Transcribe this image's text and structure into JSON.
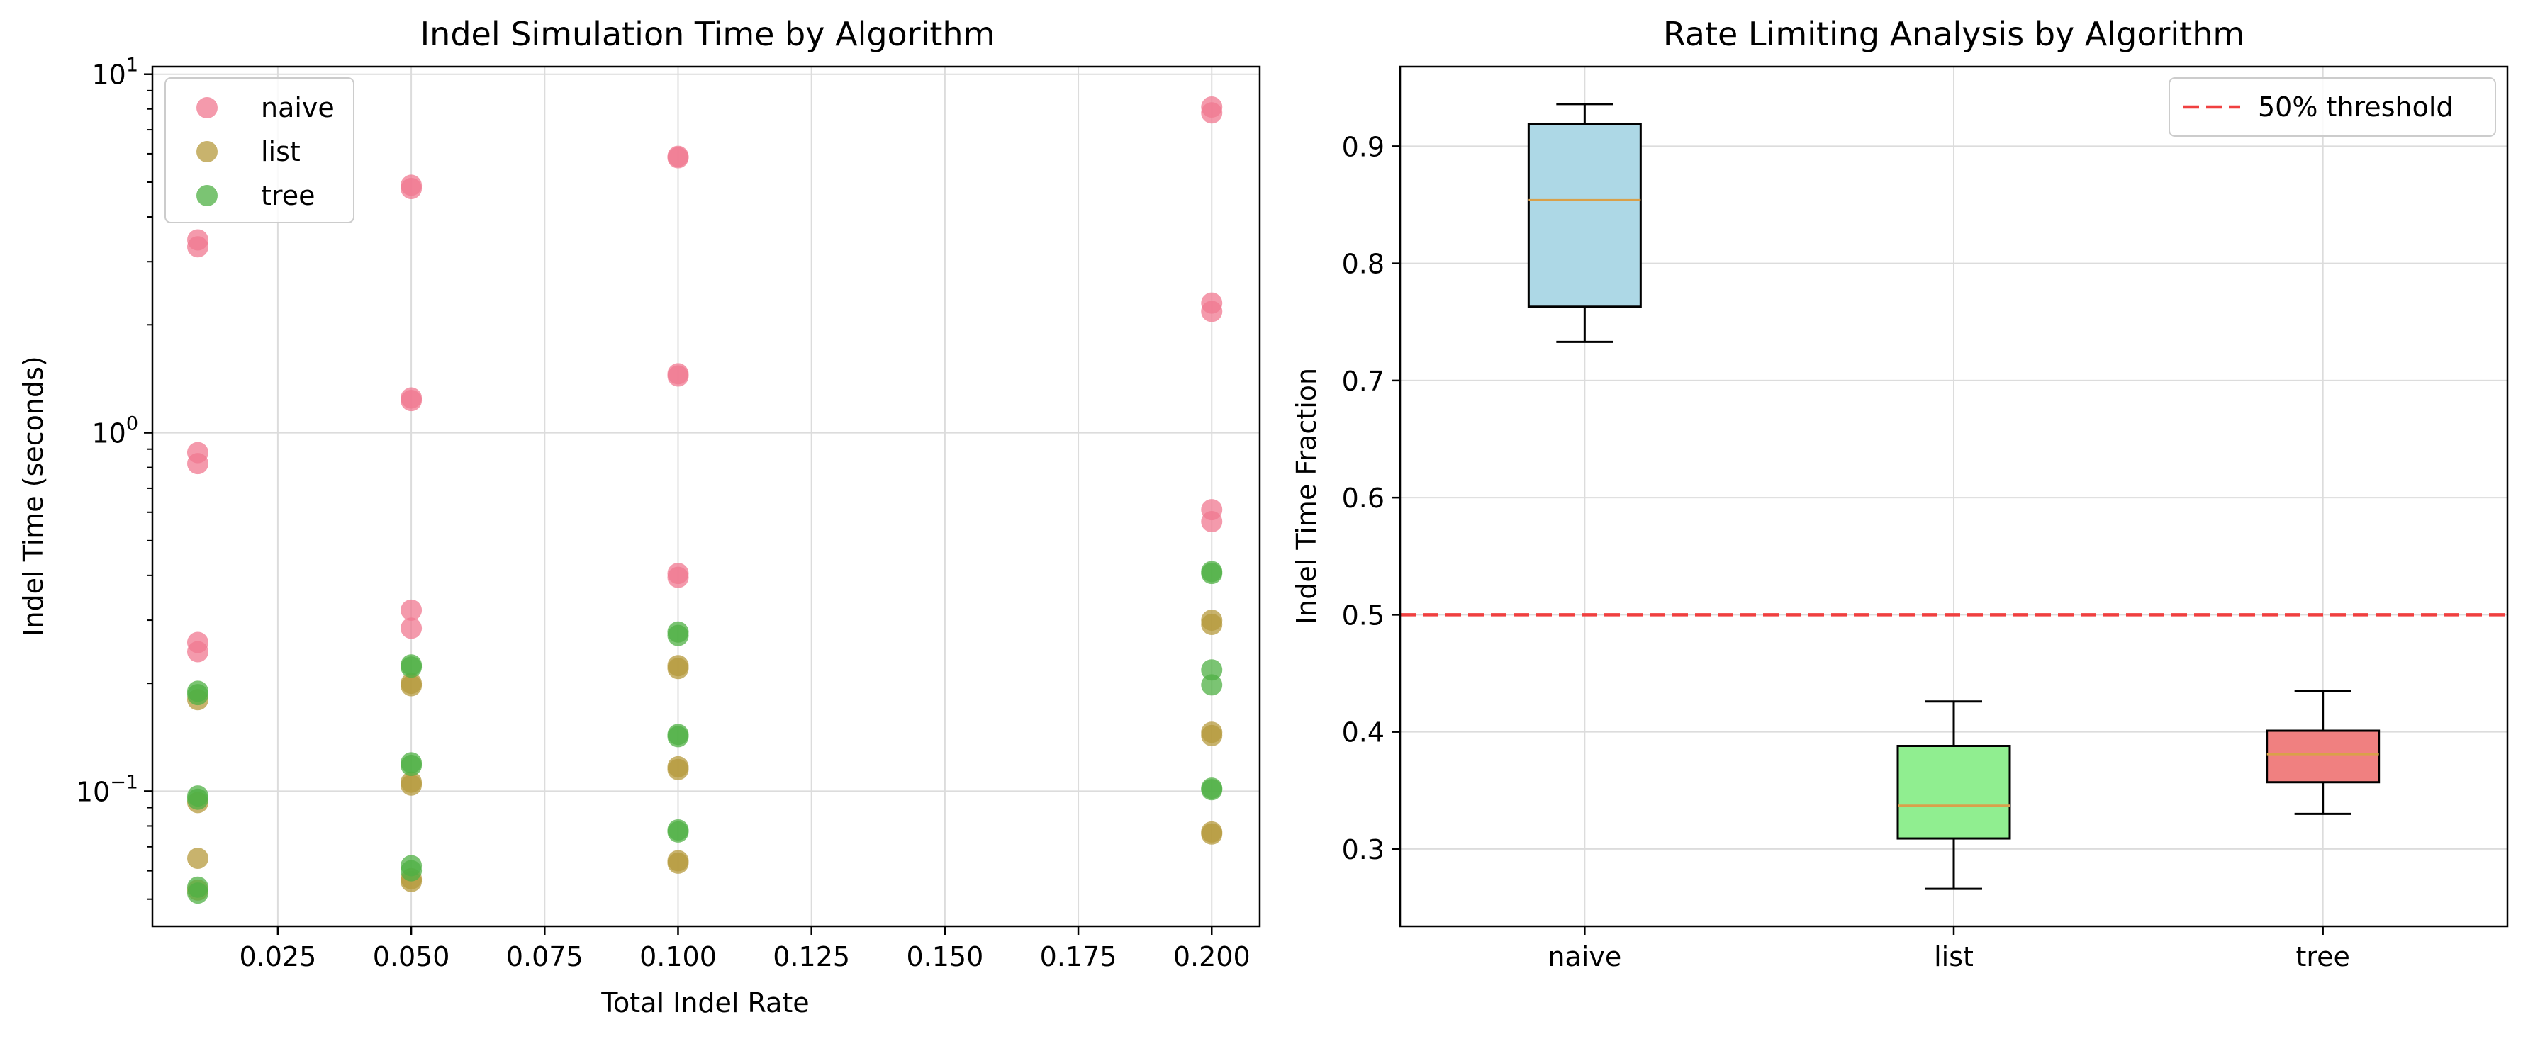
{
  "chart_data": [
    {
      "type": "scatter",
      "title": "Indel Simulation Time by Algorithm",
      "xlabel": "Total Indel Rate",
      "ylabel": "Indel Time (seconds)",
      "xlim": [
        0.0015,
        0.209
      ],
      "ylim": [
        0.042,
        10.5
      ],
      "yscale": "log",
      "grid": true,
      "legend_position": "upper-left",
      "xticks": [
        0.025,
        0.05,
        0.075,
        0.1,
        0.125,
        0.15,
        0.175,
        0.2
      ],
      "xtick_labels": [
        "0.025",
        "0.050",
        "0.075",
        "0.100",
        "0.125",
        "0.150",
        "0.175",
        "0.200"
      ],
      "yticks": [
        {
          "value": 10,
          "base": "10",
          "exp": "1"
        },
        {
          "value": 1,
          "base": "10",
          "exp": "0"
        },
        {
          "value": 0.1,
          "base": "10",
          "exp": "−1"
        }
      ],
      "series": [
        {
          "name": "naive",
          "color": "#f07890",
          "points": [
            [
              0.01,
              3.45
            ],
            [
              0.01,
              3.3
            ],
            [
              0.01,
              0.88
            ],
            [
              0.01,
              0.82
            ],
            [
              0.01,
              0.26
            ],
            [
              0.01,
              0.245
            ],
            [
              0.05,
              4.9
            ],
            [
              0.05,
              4.8
            ],
            [
              0.05,
              1.25
            ],
            [
              0.05,
              1.23
            ],
            [
              0.05,
              0.32
            ],
            [
              0.05,
              0.285
            ],
            [
              0.1,
              5.9
            ],
            [
              0.1,
              5.85
            ],
            [
              0.1,
              1.46
            ],
            [
              0.1,
              1.44
            ],
            [
              0.1,
              0.405
            ],
            [
              0.1,
              0.395
            ],
            [
              0.2,
              8.1
            ],
            [
              0.2,
              7.8
            ],
            [
              0.2,
              2.3
            ],
            [
              0.2,
              2.18
            ],
            [
              0.2,
              0.61
            ],
            [
              0.2,
              0.565
            ]
          ]
        },
        {
          "name": "list",
          "color": "#b59a3c",
          "points": [
            [
              0.01,
              0.18
            ],
            [
              0.01,
              0.093
            ],
            [
              0.01,
              0.065
            ],
            [
              0.01,
              0.053
            ],
            [
              0.05,
              0.2
            ],
            [
              0.05,
              0.197
            ],
            [
              0.05,
              0.106
            ],
            [
              0.05,
              0.104
            ],
            [
              0.05,
              0.057
            ],
            [
              0.05,
              0.056
            ],
            [
              0.1,
              0.224
            ],
            [
              0.1,
              0.22
            ],
            [
              0.1,
              0.117
            ],
            [
              0.1,
              0.115
            ],
            [
              0.1,
              0.064
            ],
            [
              0.1,
              0.063
            ],
            [
              0.2,
              0.3
            ],
            [
              0.2,
              0.292
            ],
            [
              0.2,
              0.146
            ],
            [
              0.2,
              0.143
            ],
            [
              0.2,
              0.077
            ],
            [
              0.2,
              0.076
            ]
          ]
        },
        {
          "name": "tree",
          "color": "#4fb044",
          "points": [
            [
              0.01,
              0.19
            ],
            [
              0.01,
              0.186
            ],
            [
              0.01,
              0.097
            ],
            [
              0.01,
              0.095
            ],
            [
              0.01,
              0.054
            ],
            [
              0.01,
              0.052
            ],
            [
              0.05,
              0.225
            ],
            [
              0.05,
              0.222
            ],
            [
              0.05,
              0.12
            ],
            [
              0.05,
              0.118
            ],
            [
              0.05,
              0.062
            ],
            [
              0.05,
              0.06
            ],
            [
              0.1,
              0.278
            ],
            [
              0.1,
              0.272
            ],
            [
              0.1,
              0.144
            ],
            [
              0.1,
              0.142
            ],
            [
              0.1,
              0.078
            ],
            [
              0.1,
              0.077
            ],
            [
              0.2,
              0.41
            ],
            [
              0.2,
              0.405
            ],
            [
              0.2,
              0.218
            ],
            [
              0.2,
              0.198
            ],
            [
              0.2,
              0.102
            ],
            [
              0.2,
              0.101
            ]
          ]
        }
      ]
    },
    {
      "type": "box",
      "title": "Rate Limiting Analysis by Algorithm",
      "xlabel": "",
      "ylabel": "Indel Time Fraction",
      "ylim": [
        0.234,
        0.968
      ],
      "grid": true,
      "legend_position": "upper-right",
      "yticks": [
        0.3,
        0.4,
        0.5,
        0.6,
        0.7,
        0.8,
        0.9
      ],
      "ytick_labels": [
        "0.3",
        "0.4",
        "0.5",
        "0.6",
        "0.7",
        "0.8",
        "0.9"
      ],
      "categories": [
        "naive",
        "list",
        "tree"
      ],
      "boxes": [
        {
          "name": "naive",
          "whisker_low": 0.733,
          "q1": 0.763,
          "median": 0.854,
          "q3": 0.919,
          "whisker_high": 0.936,
          "color": "#add8e6"
        },
        {
          "name": "list",
          "whisker_low": 0.266,
          "q1": 0.309,
          "median": 0.337,
          "q3": 0.388,
          "whisker_high": 0.426,
          "color": "#90ee90"
        },
        {
          "name": "tree",
          "whisker_low": 0.33,
          "q1": 0.357,
          "median": 0.381,
          "q3": 0.401,
          "whisker_high": 0.435,
          "color": "#f08080"
        }
      ],
      "median_color": "#d9a04a",
      "threshold": {
        "value": 0.5,
        "label": "50% threshold",
        "color": "#f04040"
      }
    }
  ]
}
